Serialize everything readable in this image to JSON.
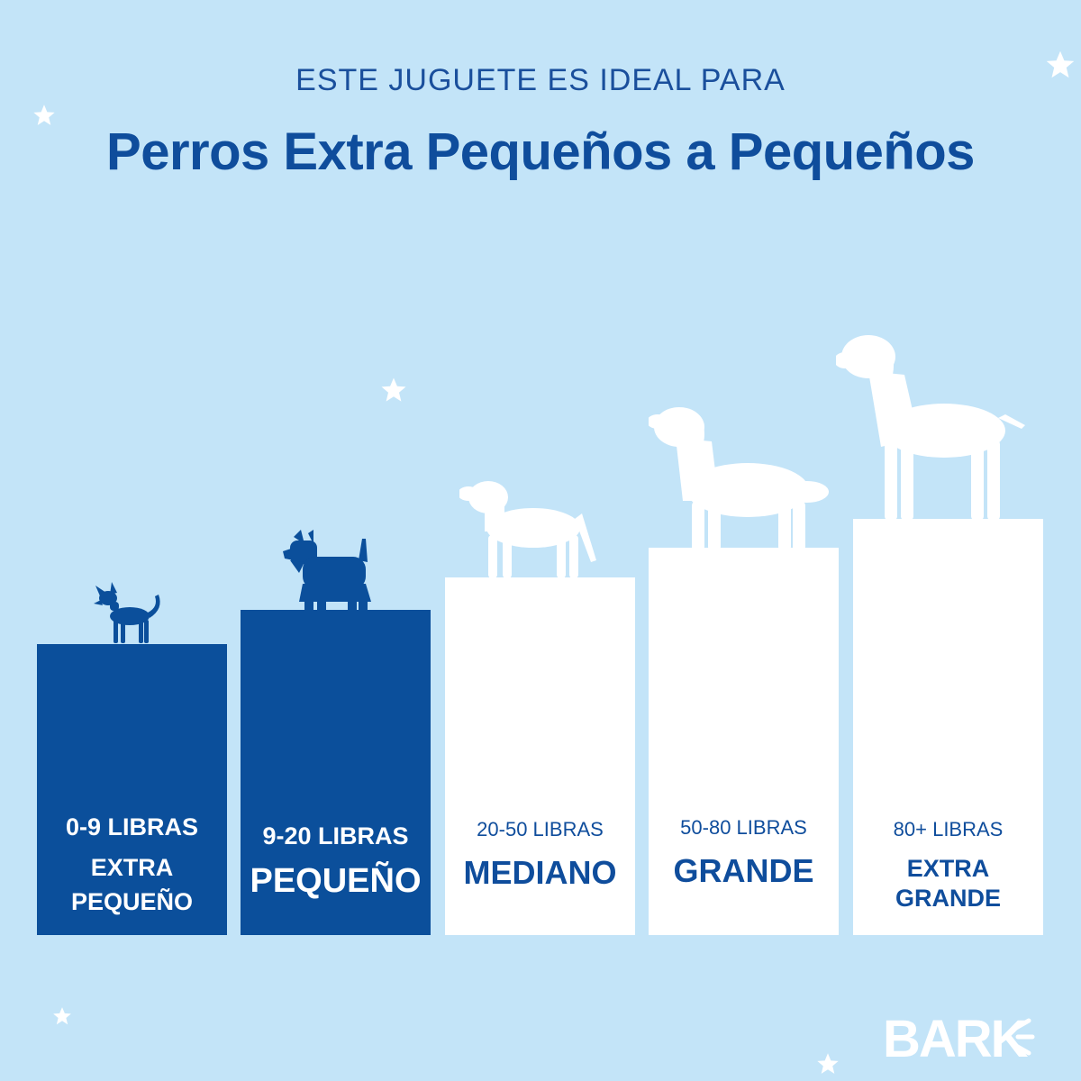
{
  "header": {
    "subtitle": "ESTE JUGUETE ES IDEAL PARA",
    "title": "Perros Extra Pequeños a Pequeños"
  },
  "sizes": [
    {
      "weight": "0-9 LIBRAS",
      "size": "EXTRA PEQUEÑO",
      "highlighted": true
    },
    {
      "weight": "9-20 LIBRAS",
      "size": "PEQUEÑO",
      "highlighted": true
    },
    {
      "weight": "20-50 LIBRAS",
      "size": "MEDIANO",
      "highlighted": false
    },
    {
      "weight": "50-80 LIBRAS",
      "size": "GRANDE",
      "highlighted": false
    },
    {
      "weight": "80+ LIBRAS",
      "size": "EXTRA GRANDE",
      "highlighted": false
    }
  ],
  "brand": {
    "logo": "BARK"
  },
  "colors": {
    "background": "#c3e4f8",
    "highlight": "#0b4f9b",
    "text_dark": "#0f4d9c",
    "white": "#ffffff"
  }
}
